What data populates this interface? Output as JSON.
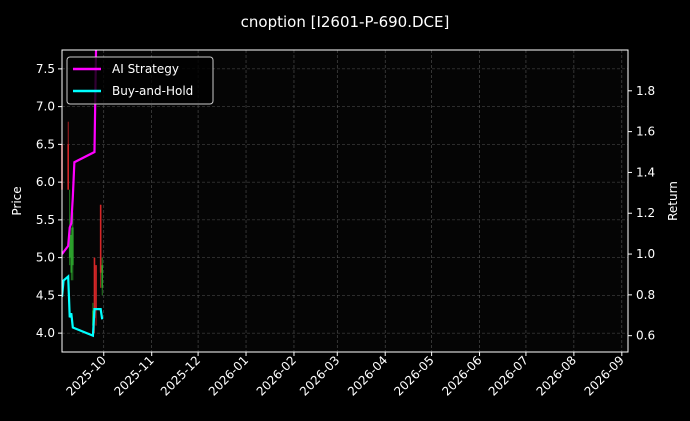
{
  "chart_data": {
    "type": "line",
    "title": "cnoption [I2601-P-690.DCE]",
    "ylabel_left": "Price",
    "ylabel_right": "Return",
    "xlabel": "",
    "xlim": [
      "2025-09-04",
      "2026-09-05"
    ],
    "ylim_left": [
      3.75,
      7.75
    ],
    "ylim_right": [
      0.52,
      2.0
    ],
    "grid": true,
    "legend_position": "top-left",
    "x_ticks": [
      "2025-10",
      "2025-11",
      "2025-12",
      "2026-01",
      "2026-02",
      "2026-03",
      "2026-04",
      "2026-05",
      "2026-06",
      "2026-07",
      "2026-08",
      "2026-09"
    ],
    "y_ticks_left": [
      "4.0",
      "4.5",
      "5.0",
      "5.5",
      "6.0",
      "6.5",
      "7.0",
      "7.5"
    ],
    "y_ticks_right": [
      "0.6",
      "0.8",
      "1.0",
      "1.2",
      "1.4",
      "1.6",
      "1.8"
    ],
    "candles": [
      {
        "date": "2025-09-04",
        "open": 6.5,
        "high": 6.6,
        "low": 5.9,
        "close": 5.9
      },
      {
        "date": "2025-09-08",
        "open": 6.5,
        "high": 6.8,
        "low": 5.9,
        "close": 5.9
      },
      {
        "date": "2025-09-09",
        "open": 5.0,
        "high": 5.9,
        "low": 4.9,
        "close": 5.4
      },
      {
        "date": "2025-09-10",
        "open": 4.8,
        "high": 5.4,
        "low": 4.7,
        "close": 5.3
      },
      {
        "date": "2025-09-11",
        "open": 4.9,
        "high": 5.6,
        "low": 4.7,
        "close": 5.4
      },
      {
        "date": "2025-09-24",
        "open": 4.1,
        "high": 4.4,
        "low": 4.0,
        "close": 4.3
      },
      {
        "date": "2025-09-25",
        "open": 5.0,
        "high": 5.0,
        "low": 4.0,
        "close": 4.2
      },
      {
        "date": "2025-09-26",
        "open": 4.9,
        "high": 4.9,
        "low": 4.1,
        "close": 4.3
      },
      {
        "date": "2025-09-29",
        "open": 5.7,
        "high": 5.7,
        "low": 4.6,
        "close": 4.8
      },
      {
        "date": "2025-09-30",
        "open": 4.6,
        "high": 5.0,
        "low": 4.5,
        "close": 4.9
      }
    ],
    "series": [
      {
        "name": "AI Strategy",
        "axis": "right",
        "color": "#ff00ff",
        "x": [
          "2025-09-04",
          "2025-09-08",
          "2025-09-09",
          "2025-09-10",
          "2025-09-11",
          "2025-09-12",
          "2025-09-25",
          "2025-09-26"
        ],
        "y": [
          1.0,
          1.04,
          1.13,
          1.15,
          1.28,
          1.45,
          1.5,
          2.0
        ]
      },
      {
        "name": "Buy-and-Hold",
        "axis": "right",
        "color": "#00ffff",
        "x": [
          "2025-09-04",
          "2025-09-05",
          "2025-09-08",
          "2025-09-09",
          "2025-09-10",
          "2025-09-11",
          "2025-09-24",
          "2025-09-25",
          "2025-09-29",
          "2025-09-30"
        ],
        "y": [
          0.79,
          0.87,
          0.89,
          0.69,
          0.71,
          0.64,
          0.6,
          0.73,
          0.73,
          0.68
        ]
      }
    ],
    "colors": {
      "up": "#2ca02c",
      "down": "#d62728",
      "background": "#000000"
    }
  }
}
